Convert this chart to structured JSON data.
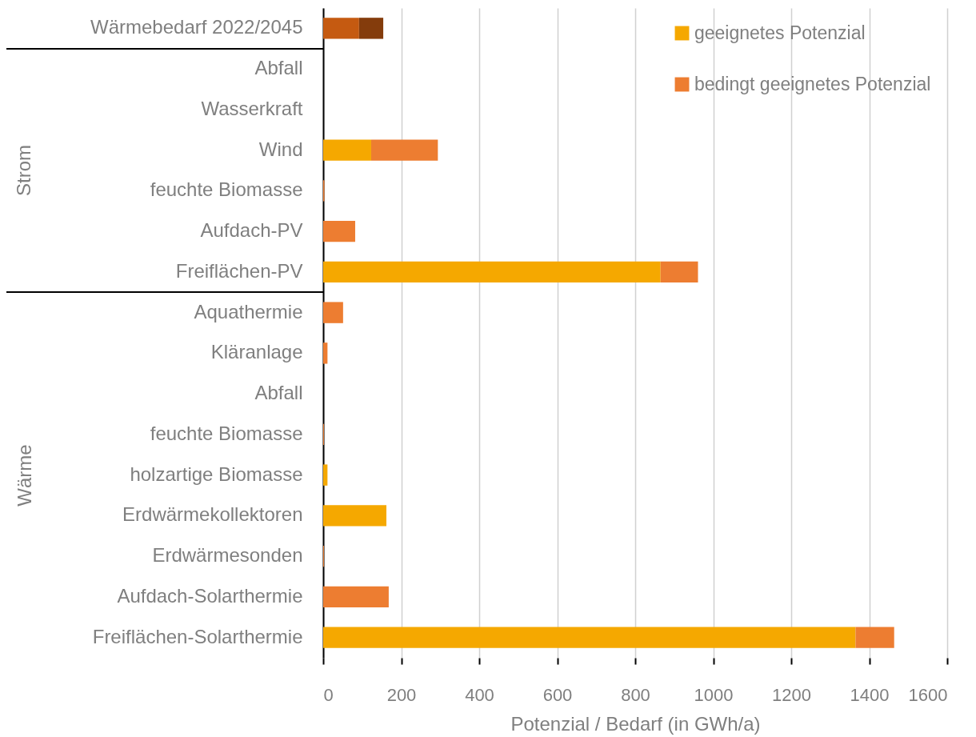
{
  "chart_data": {
    "type": "bar",
    "orientation": "horizontal",
    "stacked": true,
    "categories": [
      "Wärmebedarf 2022/2045",
      "Abfall",
      "Wasserkraft",
      "Wind",
      "feuchte Biomasse",
      "Aufdach-PV",
      "Freiflächen-PV",
      "Aquathermie",
      "Kläranlage",
      "Abfall",
      "feuchte Biomasse",
      "holzartige Biomasse",
      "Erdwärmekollektoren",
      "Erdwärmesonden",
      "Aufdach-Solarthermie",
      "Freiflächen-Solarthermie"
    ],
    "series": [
      {
        "name": "geeignetes Potenzial",
        "color": "#f5a800",
        "values": [
          null,
          null,
          null,
          123,
          null,
          null,
          865,
          null,
          null,
          null,
          null,
          11,
          162,
          null,
          null,
          1365
        ]
      },
      {
        "name": "bedingt geeignetes Potenzial",
        "color": "#ed7d31",
        "values": [
          null,
          null,
          null,
          171,
          3,
          82,
          96,
          51,
          11,
          null,
          2,
          null,
          null,
          2,
          168,
          99
        ]
      },
      {
        "color": "#c55a11",
        "values": [
          92,
          null,
          null,
          null,
          null,
          null,
          null,
          null,
          null,
          null,
          null,
          null,
          null,
          null,
          null,
          null
        ]
      },
      {
        "color": "#843c0c",
        "values": [
          62,
          null,
          null,
          null,
          null,
          null,
          null,
          null,
          null,
          null,
          null,
          null,
          null,
          null,
          null,
          null
        ]
      }
    ],
    "xlabel": "Potenzial  / Bedarf (in GWh/a)",
    "xlim": [
      0,
      1600
    ],
    "xticks": [
      0,
      200,
      400,
      600,
      800,
      1000,
      1200,
      1400,
      1600
    ],
    "grid": "x",
    "legend": "top right",
    "annotations": [
      "Strom",
      "Wärme"
    ]
  }
}
